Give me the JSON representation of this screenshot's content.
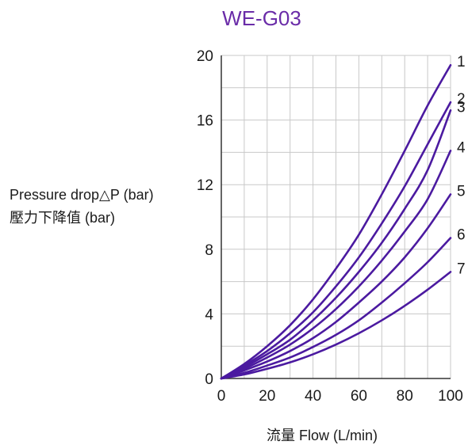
{
  "chart_data": {
    "type": "line",
    "title": "WE-G03",
    "xlabel": "流量 Flow (L/min)",
    "ylabel_line1": "Pressure drop△P (bar)",
    "ylabel_line2": "壓力下降值 (bar)",
    "xlim": [
      0,
      100
    ],
    "ylim": [
      0,
      20
    ],
    "xticks": [
      0,
      20,
      40,
      60,
      80,
      100
    ],
    "yticks": [
      0,
      4,
      8,
      12,
      16,
      20
    ],
    "grid": true,
    "line_color": "#4b1aa0",
    "title_color": "#6a2ca8",
    "x": [
      0,
      10,
      20,
      30,
      40,
      50,
      60,
      70,
      80,
      90,
      100
    ],
    "series": [
      {
        "name": "1",
        "values": [
          0,
          0.9,
          2.0,
          3.3,
          4.9,
          6.8,
          8.9,
          11.4,
          14.1,
          16.9,
          19.4
        ]
      },
      {
        "name": "2",
        "values": [
          0,
          0.8,
          1.7,
          2.8,
          4.1,
          5.7,
          7.5,
          9.6,
          11.9,
          14.5,
          17.1
        ]
      },
      {
        "name": "3",
        "values": [
          0,
          0.7,
          1.5,
          2.4,
          3.6,
          5.0,
          6.6,
          8.4,
          10.5,
          12.9,
          16.6
        ]
      },
      {
        "name": "4",
        "values": [
          0,
          0.6,
          1.3,
          2.1,
          3.1,
          4.3,
          5.7,
          7.3,
          9.1,
          11.1,
          14.1
        ]
      },
      {
        "name": "5",
        "values": [
          0,
          0.5,
          1.05,
          1.7,
          2.5,
          3.5,
          4.7,
          6.0,
          7.5,
          9.3,
          11.4
        ]
      },
      {
        "name": "6",
        "values": [
          0,
          0.35,
          0.8,
          1.3,
          1.95,
          2.7,
          3.6,
          4.7,
          5.9,
          7.2,
          8.7
        ]
      },
      {
        "name": "7",
        "values": [
          0,
          0.25,
          0.6,
          1.0,
          1.5,
          2.1,
          2.8,
          3.6,
          4.5,
          5.5,
          6.6
        ]
      }
    ]
  }
}
